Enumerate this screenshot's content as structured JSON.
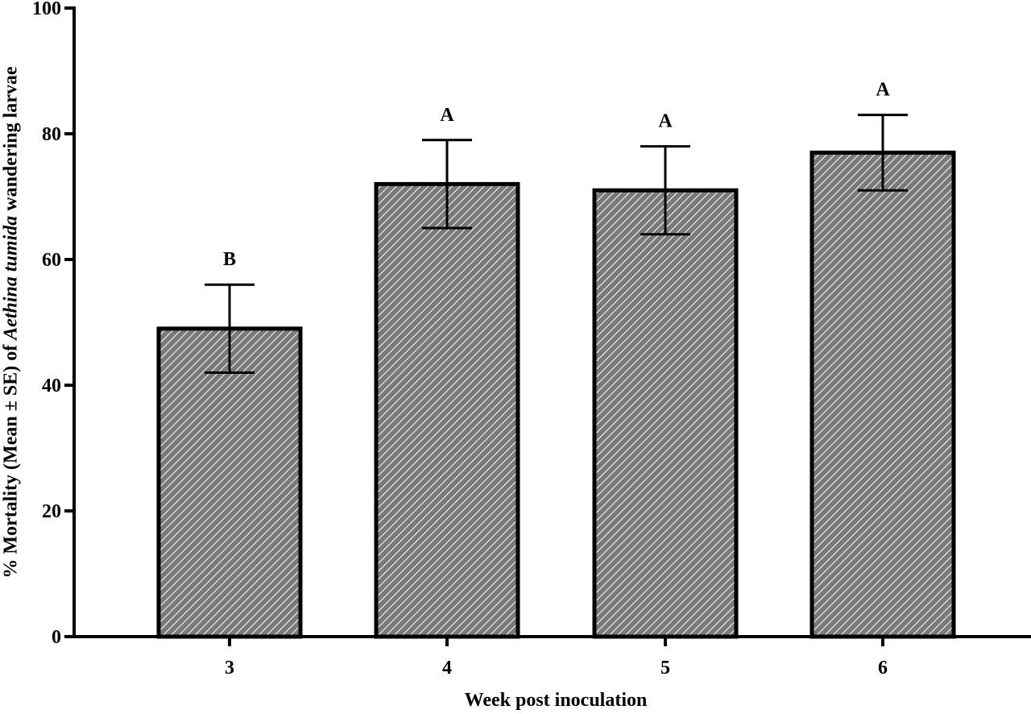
{
  "chart_data": {
    "type": "bar",
    "title": "",
    "xlabel": "Week post inoculation",
    "ylabel": {
      "prefix": "% Mortality (Mean ± SE) of ",
      "italic": "Aethina tumida",
      "suffix": " wandering larvae"
    },
    "categories": [
      "3",
      "4",
      "5",
      "6"
    ],
    "values": [
      49,
      72,
      71,
      77
    ],
    "error_upper": [
      56,
      79,
      78,
      83
    ],
    "error_lower": [
      42,
      65,
      64,
      71
    ],
    "significance_letters": [
      "B",
      "A",
      "A",
      "A"
    ],
    "ylim": [
      0,
      100
    ],
    "yticks": [
      0,
      20,
      40,
      60,
      80,
      100
    ],
    "grid": false,
    "legend": null,
    "bar_fill": "#808080",
    "bar_hatch": "diagonal white lines",
    "bar_edge": "#000000"
  }
}
